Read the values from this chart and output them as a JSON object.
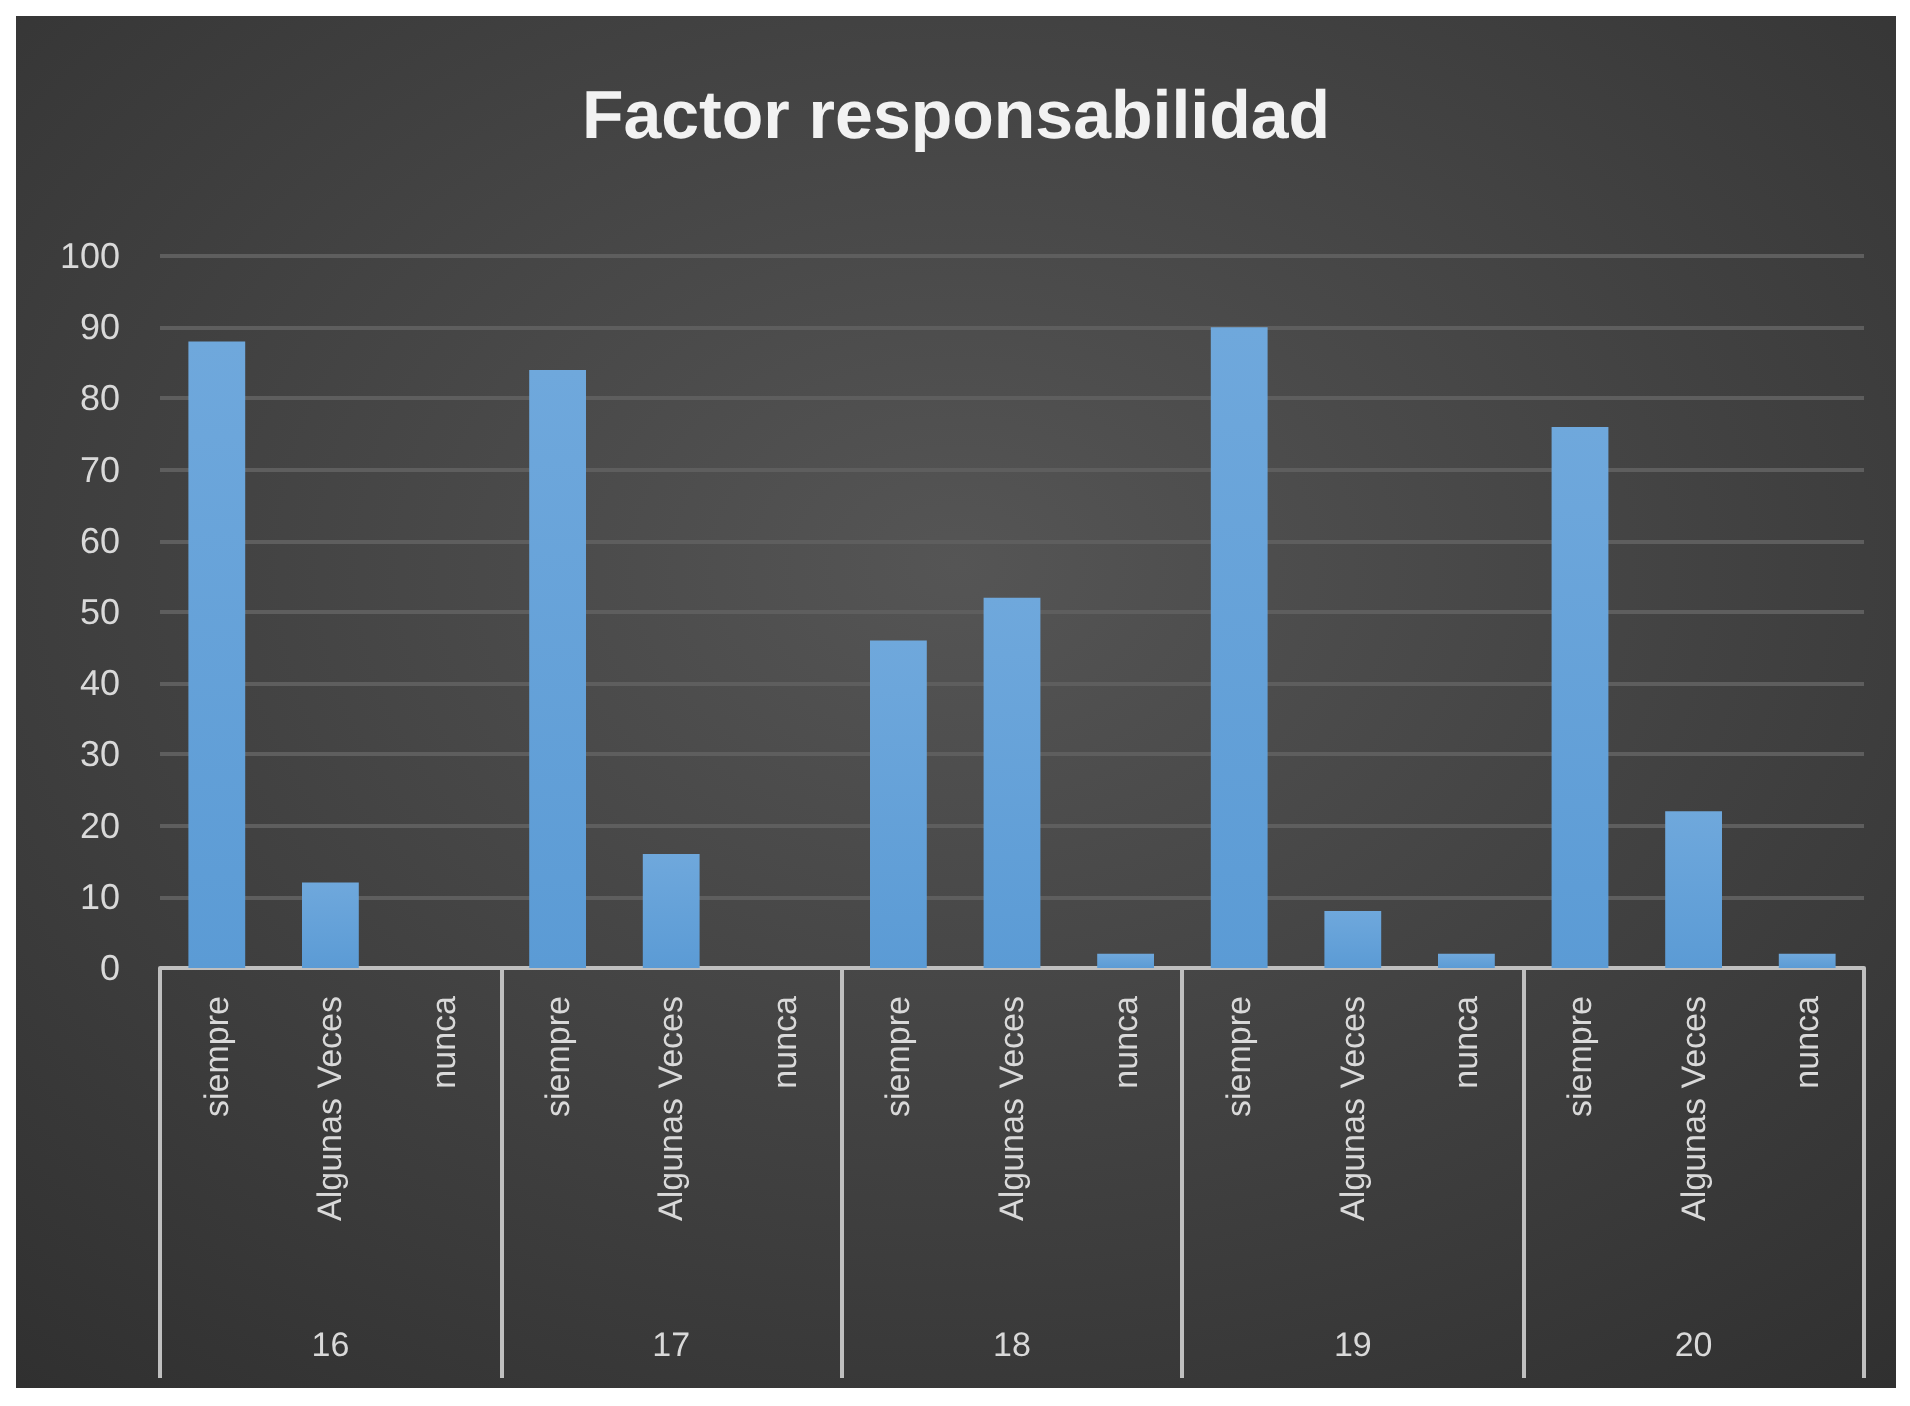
{
  "chart_data": {
    "type": "bar",
    "title": "Factor responsabilidad",
    "categories": [
      "siempre",
      "Algunas Veces",
      "nunca",
      "siempre",
      "Algunas Veces",
      "nunca",
      "siempre",
      "Algunas Veces",
      "nunca",
      "siempre",
      "Algunas Veces",
      "nunca",
      "siempre",
      "Algunas Veces",
      "nunca"
    ],
    "values": [
      88,
      12,
      0,
      84,
      16,
      0,
      46,
      52,
      2,
      90,
      8,
      2,
      76,
      22,
      2
    ],
    "color": "#5b9bd5",
    "annotations": [
      "16",
      "17",
      "18",
      "19",
      "20"
    ],
    "ylim": [
      0,
      100
    ],
    "yticks": [
      0,
      10,
      20,
      30,
      40,
      50,
      60,
      70,
      80,
      90,
      100
    ],
    "grid": "y"
  }
}
